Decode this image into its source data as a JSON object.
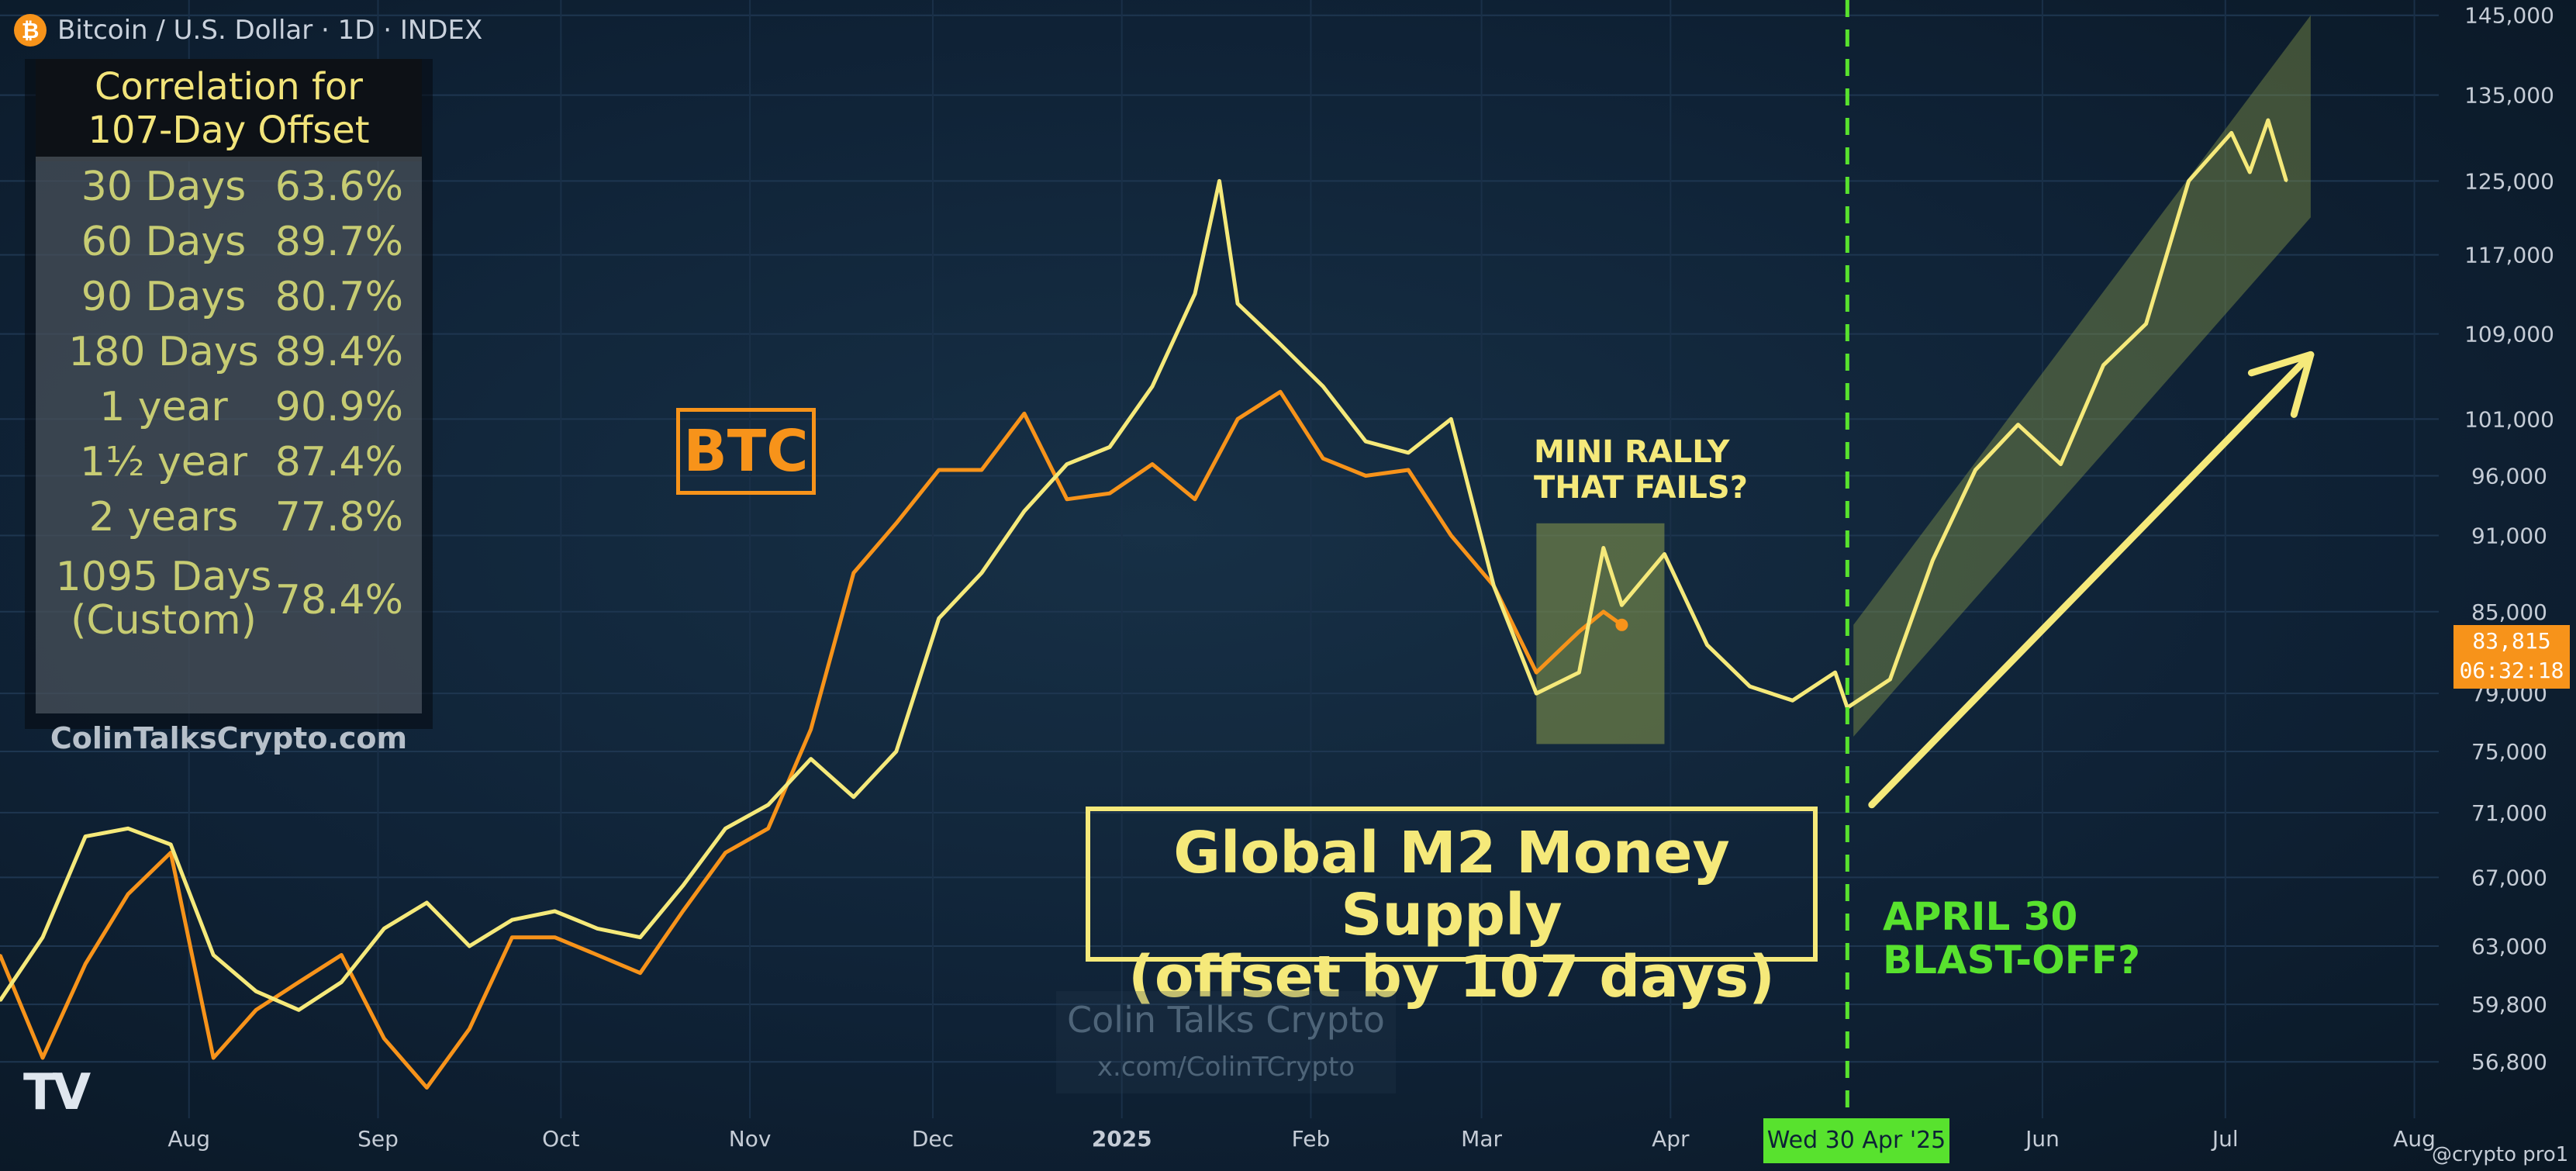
{
  "header": {
    "coin_glyph": "₿",
    "title": "Bitcoin / U.S. Dollar · 1D · INDEX"
  },
  "correlation_table": {
    "title_line1": "Correlation for",
    "title_line2": "107-Day Offset",
    "rows": [
      {
        "label": "30 Days",
        "value": "63.6%"
      },
      {
        "label": "60 Days",
        "value": "89.7%"
      },
      {
        "label": "90 Days",
        "value": "80.7%"
      },
      {
        "label": "180 Days",
        "value": "89.4%"
      },
      {
        "label": "1 year",
        "value": "90.9%"
      },
      {
        "label": "1½ year",
        "value": "87.4%"
      },
      {
        "label": "2 years",
        "value": "77.8%"
      }
    ],
    "custom_row": {
      "label_line1": "1095 Days",
      "label_line2": "(Custom)",
      "value": "78.4%"
    },
    "footer": "ColinTalksCrypto.com"
  },
  "annotations": {
    "btc_label": "BTC",
    "m2_line1": "Global M2 Money Supply",
    "m2_line2": "(offset by 107 days)",
    "mini_line1": "MINI RALLY",
    "mini_line2": "THAT FAILS?",
    "april_line1": "APRIL 30",
    "april_line2": "BLAST-OFF?"
  },
  "watermark": {
    "title": "Colin Talks Crypto",
    "handle": "x.com/ColinTCrypto"
  },
  "price_tag": {
    "price": "83,815",
    "countdown": "06:32:18"
  },
  "crosshair_date": "Wed 30 Apr '25",
  "logo": {
    "text": "TV"
  },
  "credit": "@crypto pro1",
  "colors": {
    "btc": "#f7931a",
    "m2": "#f5e97a",
    "highlight": "#58e22e",
    "channel": "#8a9a4a"
  },
  "chart_data": {
    "type": "line",
    "scale": "log",
    "ylim": [
      54000,
      147000
    ],
    "y_ticks": [
      56800,
      59800,
      63000,
      67000,
      71000,
      75000,
      79000,
      85000,
      91000,
      96000,
      101000,
      109000,
      117000,
      125000,
      135000,
      145000
    ],
    "y_tick_labels": [
      "56,800",
      "59,800",
      "63,000",
      "67,000",
      "71,000",
      "75,000",
      "79,000",
      "85,000",
      "91,000",
      "96,000",
      "101,000",
      "109,000",
      "117,000",
      "125,000",
      "135,000",
      "145,000"
    ],
    "x_range": [
      "2024-07-01",
      "2025-08-05"
    ],
    "x_ticks": [
      {
        "date": "2024-08-01",
        "label": "Aug"
      },
      {
        "date": "2024-09-01",
        "label": "Sep"
      },
      {
        "date": "2024-10-01",
        "label": "Oct"
      },
      {
        "date": "2024-11-01",
        "label": "Nov"
      },
      {
        "date": "2024-12-01",
        "label": "Dec"
      },
      {
        "date": "2025-01-01",
        "label": "2025"
      },
      {
        "date": "2025-02-01",
        "label": "Feb"
      },
      {
        "date": "2025-03-01",
        "label": "Mar"
      },
      {
        "date": "2025-04-01",
        "label": "Apr"
      },
      {
        "date": "2025-06-01",
        "label": "Jun"
      },
      {
        "date": "2025-07-01",
        "label": "Jul"
      },
      {
        "date": "2025-08-01",
        "label": "Aug"
      }
    ],
    "vline_date": "2025-04-30",
    "series": [
      {
        "name": "BTC",
        "color": "#f7931a",
        "points": [
          [
            "2024-07-01",
            62500
          ],
          [
            "2024-07-08",
            57000
          ],
          [
            "2024-07-15",
            62000
          ],
          [
            "2024-07-22",
            66000
          ],
          [
            "2024-07-29",
            68500
          ],
          [
            "2024-08-05",
            57000
          ],
          [
            "2024-08-12",
            59500
          ],
          [
            "2024-08-19",
            61000
          ],
          [
            "2024-08-26",
            62500
          ],
          [
            "2024-09-02",
            58000
          ],
          [
            "2024-09-09",
            55500
          ],
          [
            "2024-09-16",
            58500
          ],
          [
            "2024-09-23",
            63500
          ],
          [
            "2024-09-30",
            63500
          ],
          [
            "2024-10-07",
            62500
          ],
          [
            "2024-10-14",
            61500
          ],
          [
            "2024-10-21",
            65000
          ],
          [
            "2024-10-28",
            68500
          ],
          [
            "2024-11-04",
            70000
          ],
          [
            "2024-11-11",
            76500
          ],
          [
            "2024-11-18",
            88000
          ],
          [
            "2024-11-25",
            92000
          ],
          [
            "2024-12-02",
            96500
          ],
          [
            "2024-12-09",
            96500
          ],
          [
            "2024-12-16",
            101500
          ],
          [
            "2024-12-23",
            94000
          ],
          [
            "2024-12-30",
            94500
          ],
          [
            "2025-01-06",
            97000
          ],
          [
            "2025-01-13",
            94000
          ],
          [
            "2025-01-20",
            101000
          ],
          [
            "2025-01-27",
            103500
          ],
          [
            "2025-02-03",
            97500
          ],
          [
            "2025-02-10",
            96000
          ],
          [
            "2025-02-17",
            96500
          ],
          [
            "2025-02-24",
            91000
          ],
          [
            "2025-03-03",
            87000
          ],
          [
            "2025-03-10",
            80500
          ],
          [
            "2025-03-17",
            83500
          ],
          [
            "2025-03-21",
            85000
          ],
          [
            "2025-03-24",
            84000
          ]
        ]
      },
      {
        "name": "Global M2 Money Supply (offset by 107 days)",
        "color": "#f5e97a",
        "points": [
          [
            "2024-07-01",
            60000
          ],
          [
            "2024-07-08",
            63500
          ],
          [
            "2024-07-15",
            69500
          ],
          [
            "2024-07-22",
            70000
          ],
          [
            "2024-07-29",
            69000
          ],
          [
            "2024-08-05",
            62500
          ],
          [
            "2024-08-12",
            60500
          ],
          [
            "2024-08-19",
            59500
          ],
          [
            "2024-08-26",
            61000
          ],
          [
            "2024-09-02",
            64000
          ],
          [
            "2024-09-09",
            65500
          ],
          [
            "2024-09-16",
            63000
          ],
          [
            "2024-09-23",
            64500
          ],
          [
            "2024-09-30",
            65000
          ],
          [
            "2024-10-07",
            64000
          ],
          [
            "2024-10-14",
            63500
          ],
          [
            "2024-10-21",
            66500
          ],
          [
            "2024-10-28",
            70000
          ],
          [
            "2024-11-04",
            71500
          ],
          [
            "2024-11-11",
            74500
          ],
          [
            "2024-11-18",
            72000
          ],
          [
            "2024-11-25",
            75000
          ],
          [
            "2024-12-02",
            84500
          ],
          [
            "2024-12-09",
            88000
          ],
          [
            "2024-12-16",
            93000
          ],
          [
            "2024-12-23",
            97000
          ],
          [
            "2024-12-30",
            98500
          ],
          [
            "2025-01-06",
            104000
          ],
          [
            "2025-01-13",
            113000
          ],
          [
            "2025-01-17",
            125000
          ],
          [
            "2025-01-20",
            112000
          ],
          [
            "2025-01-27",
            108000
          ],
          [
            "2025-02-03",
            104000
          ],
          [
            "2025-02-10",
            99000
          ],
          [
            "2025-02-17",
            98000
          ],
          [
            "2025-02-24",
            101000
          ],
          [
            "2025-03-03",
            87000
          ],
          [
            "2025-03-10",
            79000
          ],
          [
            "2025-03-17",
            80500
          ],
          [
            "2025-03-21",
            90000
          ],
          [
            "2025-03-24",
            85500
          ],
          [
            "2025-03-31",
            89500
          ],
          [
            "2025-04-07",
            82500
          ],
          [
            "2025-04-14",
            79500
          ],
          [
            "2025-04-21",
            78500
          ],
          [
            "2025-04-28",
            80500
          ],
          [
            "2025-04-30",
            78000
          ],
          [
            "2025-05-07",
            80000
          ],
          [
            "2025-05-14",
            89000
          ],
          [
            "2025-05-21",
            96500
          ],
          [
            "2025-05-28",
            100500
          ],
          [
            "2025-06-04",
            97000
          ],
          [
            "2025-06-11",
            106000
          ],
          [
            "2025-06-18",
            110000
          ],
          [
            "2025-06-25",
            125000
          ],
          [
            "2025-07-02",
            130500
          ],
          [
            "2025-07-05",
            126000
          ],
          [
            "2025-07-08",
            132000
          ],
          [
            "2025-07-11",
            125000
          ]
        ]
      }
    ],
    "shaded_regions": [
      {
        "x0": "2025-03-10",
        "x1": "2025-03-31",
        "y0": 75500,
        "y1": 92000
      }
    ],
    "channel": {
      "x0": "2025-05-01",
      "x1": "2025-07-15",
      "upper": [
        84000,
        145000
      ],
      "lower": [
        76000,
        121000
      ]
    },
    "arrow": {
      "from": [
        "2025-05-04",
        71500
      ],
      "to": [
        "2025-07-15",
        107000
      ]
    },
    "last_dot": [
      "2025-03-24",
      84000
    ]
  }
}
